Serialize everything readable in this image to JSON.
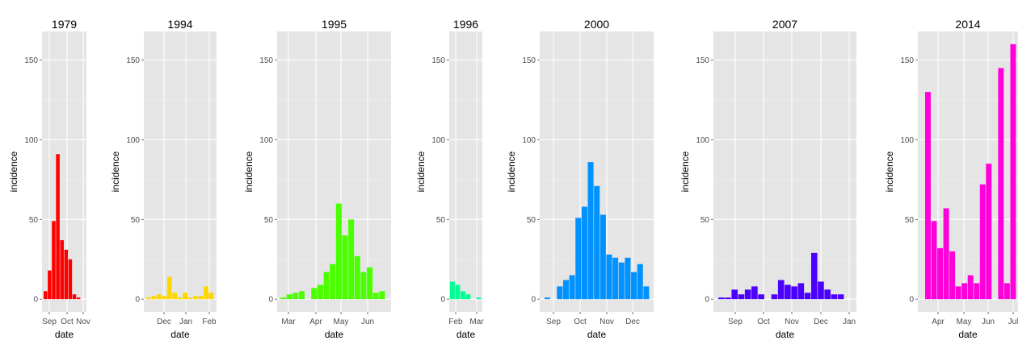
{
  "chart_data": [
    {
      "type": "bar",
      "title": "1979",
      "xlabel": "date",
      "ylabel": "incidence",
      "ylim": [
        -8,
        168
      ],
      "yticks": [
        0,
        50,
        100,
        150
      ],
      "grid": true,
      "color": "#FF0000",
      "xticks": [
        "Sep",
        "Oct",
        "Nov"
      ],
      "bars": [
        5,
        18,
        49,
        91,
        37,
        31,
        25,
        3,
        1
      ]
    },
    {
      "type": "bar",
      "title": "1994",
      "xlabel": "date",
      "ylabel": "incidence",
      "ylim": [
        -8,
        168
      ],
      "yticks": [
        0,
        50,
        100,
        150
      ],
      "grid": true,
      "color": "#FFD700",
      "xticks": [
        "Dec",
        "Jan",
        "Feb"
      ],
      "bars": [
        1,
        2,
        3,
        2,
        14,
        4,
        1,
        4,
        1,
        2,
        2,
        8,
        4
      ]
    },
    {
      "type": "bar",
      "title": "1995",
      "xlabel": "date",
      "ylabel": "incidence",
      "ylim": [
        -8,
        168
      ],
      "yticks": [
        0,
        50,
        100,
        150
      ],
      "grid": true,
      "color": "#4CFF00",
      "xticks": [
        "Mar",
        "Apr",
        "May",
        "Jun"
      ],
      "bars": [
        1,
        3,
        4,
        5,
        0,
        7,
        9,
        17,
        22,
        60,
        40,
        50,
        27,
        17,
        20,
        4,
        5
      ]
    },
    {
      "type": "bar",
      "title": "1996",
      "xlabel": "date",
      "ylabel": "incidence",
      "ylim": [
        -8,
        168
      ],
      "yticks": [
        0,
        50,
        100,
        150
      ],
      "grid": true,
      "color": "#00FF92",
      "xticks": [
        "Feb",
        "Mar"
      ],
      "bars": [
        11,
        9,
        5,
        3,
        0,
        1
      ]
    },
    {
      "type": "bar",
      "title": "2000",
      "xlabel": "date",
      "ylabel": "incidence",
      "ylim": [
        -8,
        168
      ],
      "yticks": [
        0,
        50,
        100,
        150
      ],
      "grid": true,
      "color": "#0092FF",
      "xticks": [
        "Sep",
        "Oct",
        "Nov",
        "Dec"
      ],
      "bars": [
        1,
        0,
        8,
        12,
        15,
        51,
        58,
        86,
        71,
        53,
        28,
        26,
        23,
        26,
        17,
        22,
        8
      ]
    },
    {
      "type": "bar",
      "title": "2007",
      "xlabel": "date",
      "ylabel": "incidence",
      "ylim": [
        -8,
        168
      ],
      "yticks": [
        0,
        50,
        100,
        150
      ],
      "grid": true,
      "color": "#4C00FF",
      "xticks": [
        "Sep",
        "Oct",
        "Nov",
        "Dec",
        "Jan"
      ],
      "bars": [
        1,
        1,
        6,
        3,
        6,
        8,
        3,
        0,
        3,
        12,
        9,
        8,
        10,
        4,
        29,
        11,
        6,
        3,
        3
      ]
    },
    {
      "type": "bar",
      "title": "2014",
      "xlabel": "date",
      "ylabel": "incidence",
      "ylim": [
        -8,
        168
      ],
      "yticks": [
        0,
        50,
        100,
        150
      ],
      "grid": true,
      "color": "#FF00DB",
      "xticks": [
        "Apr",
        "May",
        "Jun",
        "Jul"
      ],
      "bars": [
        130,
        49,
        32,
        57,
        30,
        8,
        10,
        15,
        10,
        72,
        85,
        0,
        145,
        10,
        160
      ]
    }
  ]
}
